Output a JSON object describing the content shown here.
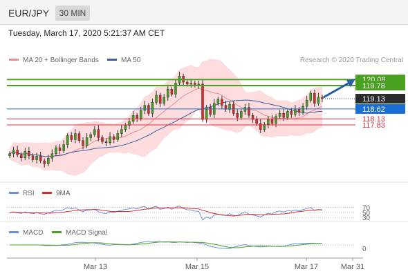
{
  "header": {
    "symbol": "EUR/JPY",
    "timeframe": "30 MIN",
    "timestamp": "Tuesday, March 17, 2020 5:21:37 AM CET",
    "credit": "Research © 2020 Trading Central"
  },
  "legends": {
    "main": [
      {
        "label": "MA 20 + Bollinger Bands",
        "color": "#f08b8b"
      },
      {
        "label": "MA 50",
        "color": "#3a5ea8"
      }
    ],
    "rsi": [
      {
        "label": "RSI",
        "color": "#6b8fd8"
      },
      {
        "label": "9MA",
        "color": "#d62c2c"
      }
    ],
    "macd": [
      {
        "label": "MACD",
        "color": "#6b8fd8"
      },
      {
        "label": "MACD Signal",
        "color": "#4aa020"
      }
    ]
  },
  "chart_data": {
    "type": "candlestick",
    "x_ticks": [
      "Mar 13",
      "Mar 15",
      "Mar 17",
      "Mar 31"
    ],
    "price_levels": {
      "resistance": [
        120.08,
        119.78
      ],
      "current": 119.13,
      "pivot": 118.62,
      "support": [
        118.13,
        117.83
      ]
    },
    "colors": {
      "resistance": "#4aa020",
      "current": "#2b2b2b",
      "pivot": "#1a6fd6",
      "support": "#e0303a",
      "bull": "#4aa020",
      "bear": "#d62c2c",
      "band": "#fbd6d6",
      "ma50": "#3a5ea8",
      "ma20": "#f08b8b"
    },
    "ohlc_close": [
      116.4,
      116.58,
      116.35,
      116.2,
      116.52,
      116.3,
      116.1,
      116.28,
      116.05,
      115.9,
      116.18,
      116.4,
      116.7,
      116.55,
      116.85,
      117.3,
      117.1,
      117.4,
      117.05,
      116.8,
      117.2,
      117.35,
      117.6,
      117.2,
      117.0,
      116.95,
      117.25,
      117.1,
      117.4,
      117.6,
      117.8,
      118.0,
      118.3,
      118.15,
      118.55,
      118.8,
      118.4,
      118.95,
      119.3,
      118.9,
      119.2,
      119.6,
      119.35,
      119.9,
      120.25,
      119.95,
      119.85,
      119.9,
      119.8,
      119.85,
      118.1,
      118.7,
      118.35,
      118.9,
      119.1,
      118.8,
      118.6,
      118.85,
      118.4,
      118.2,
      118.5,
      118.7,
      118.3,
      118.1,
      117.9,
      117.6,
      117.85,
      118.1,
      117.9,
      118.25,
      118.4,
      118.2,
      118.5,
      118.35,
      118.6,
      118.45,
      118.75,
      119.05,
      119.4,
      118.9,
      119.2,
      119.13
    ],
    "ylim": [
      115.3,
      120.6
    ],
    "rsi": {
      "levels": [
        70,
        50,
        30
      ]
    },
    "macd": {
      "levels": [
        0
      ]
    }
  }
}
